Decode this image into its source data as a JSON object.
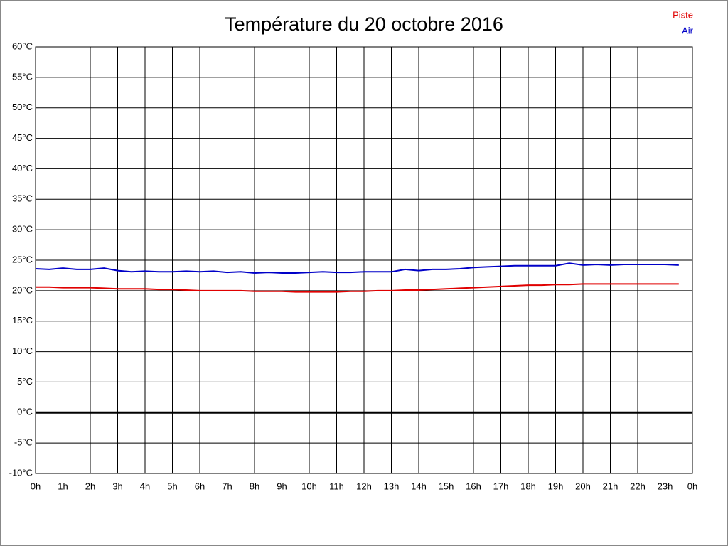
{
  "chart_data": {
    "type": "line",
    "title": "Température du 20 octobre 2016",
    "x": [
      0,
      0.5,
      1,
      1.5,
      2,
      2.5,
      3,
      3.5,
      4,
      4.5,
      5,
      5.5,
      6,
      6.5,
      7,
      7.5,
      8,
      8.5,
      9,
      9.5,
      10,
      10.5,
      11,
      11.5,
      12,
      12.5,
      13,
      13.5,
      14,
      14.5,
      15,
      15.5,
      16,
      16.5,
      17,
      17.5,
      18,
      18.5,
      19,
      19.5,
      20,
      20.5,
      21,
      21.5,
      22,
      22.5,
      23,
      23.5
    ],
    "series": [
      {
        "name": "Piste",
        "color": "#e00000",
        "values": [
          20.6,
          20.6,
          20.5,
          20.5,
          20.5,
          20.4,
          20.3,
          20.3,
          20.3,
          20.2,
          20.2,
          20.1,
          20.0,
          20.0,
          20.0,
          20.0,
          19.9,
          19.9,
          19.9,
          19.8,
          19.8,
          19.8,
          19.8,
          19.9,
          19.9,
          20.0,
          20.0,
          20.1,
          20.1,
          20.2,
          20.3,
          20.4,
          20.5,
          20.6,
          20.7,
          20.8,
          20.9,
          20.9,
          21.0,
          21.0,
          21.1,
          21.1,
          21.1,
          21.1,
          21.1,
          21.1,
          21.1,
          21.1
        ]
      },
      {
        "name": "Air",
        "color": "#0000c8",
        "values": [
          23.6,
          23.5,
          23.7,
          23.5,
          23.5,
          23.7,
          23.3,
          23.1,
          23.2,
          23.1,
          23.1,
          23.2,
          23.1,
          23.2,
          23.0,
          23.1,
          22.9,
          23.0,
          22.9,
          22.9,
          23.0,
          23.1,
          23.0,
          23.0,
          23.1,
          23.1,
          23.1,
          23.5,
          23.3,
          23.5,
          23.5,
          23.6,
          23.8,
          23.9,
          24.0,
          24.1,
          24.1,
          24.1,
          24.1,
          24.5,
          24.2,
          24.3,
          24.2,
          24.3,
          24.3,
          24.3,
          24.3,
          24.2
        ]
      }
    ],
    "xlim": [
      0,
      24
    ],
    "xticks": [
      {
        "value": 0,
        "label": "0h"
      },
      {
        "value": 1,
        "label": "1h"
      },
      {
        "value": 2,
        "label": "2h"
      },
      {
        "value": 3,
        "label": "3h"
      },
      {
        "value": 4,
        "label": "4h"
      },
      {
        "value": 5,
        "label": "5h"
      },
      {
        "value": 6,
        "label": "6h"
      },
      {
        "value": 7,
        "label": "7h"
      },
      {
        "value": 8,
        "label": "8h"
      },
      {
        "value": 9,
        "label": "9h"
      },
      {
        "value": 10,
        "label": "10h"
      },
      {
        "value": 11,
        "label": "11h"
      },
      {
        "value": 12,
        "label": "12h"
      },
      {
        "value": 13,
        "label": "13h"
      },
      {
        "value": 14,
        "label": "14h"
      },
      {
        "value": 15,
        "label": "15h"
      },
      {
        "value": 16,
        "label": "16h"
      },
      {
        "value": 17,
        "label": "17h"
      },
      {
        "value": 18,
        "label": "18h"
      },
      {
        "value": 19,
        "label": "19h"
      },
      {
        "value": 20,
        "label": "20h"
      },
      {
        "value": 21,
        "label": "21h"
      },
      {
        "value": 22,
        "label": "22h"
      },
      {
        "value": 23,
        "label": "23h"
      },
      {
        "value": 24,
        "label": "0h"
      }
    ],
    "ylim": [
      -10,
      60
    ],
    "yticks": [
      {
        "value": -10,
        "label": "-10°C"
      },
      {
        "value": -5,
        "label": "-5°C"
      },
      {
        "value": 0,
        "label": "0°C"
      },
      {
        "value": 5,
        "label": "5°C"
      },
      {
        "value": 10,
        "label": "10°C"
      },
      {
        "value": 15,
        "label": "15°C"
      },
      {
        "value": 20,
        "label": "20°C"
      },
      {
        "value": 25,
        "label": "25°C"
      },
      {
        "value": 30,
        "label": "30°C"
      },
      {
        "value": 35,
        "label": "35°C"
      },
      {
        "value": 40,
        "label": "40°C"
      },
      {
        "value": 45,
        "label": "45°C"
      },
      {
        "value": 50,
        "label": "50°C"
      },
      {
        "value": 55,
        "label": "55°C"
      },
      {
        "value": 60,
        "label": "60°C"
      }
    ],
    "grid": true,
    "zero_line": true,
    "legend": "top-right"
  }
}
